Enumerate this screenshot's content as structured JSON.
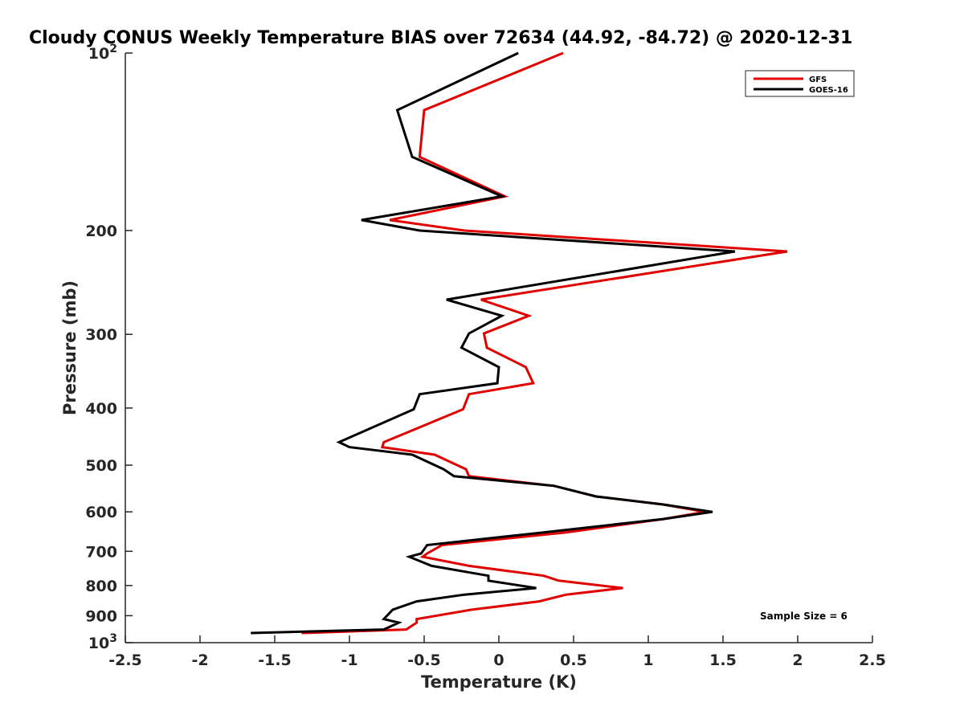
{
  "chart_data": {
    "type": "line",
    "title": "Cloudy CONUS Weekly Temperature BIAS over 72634 (44.92, -84.72) @ 2020-12-31",
    "xlabel": "Temperature (K)",
    "ylabel": "Pressure (mb)",
    "xlim": [
      -2.5,
      2.5
    ],
    "ylim": [
      100,
      1000
    ],
    "y_scale": "log",
    "y_reversed": true,
    "grid": false,
    "legend_position": "top-right",
    "x_ticks": [
      "-2.5",
      "-2",
      "-1.5",
      "-1",
      "-0.5",
      "0",
      "0.5",
      "1",
      "1.5",
      "2",
      "2.5"
    ],
    "y_ticks": [
      {
        "value": 100,
        "base": "10",
        "exp": "2"
      },
      {
        "value": 200,
        "label": "200"
      },
      {
        "value": 300,
        "label": "300"
      },
      {
        "value": 400,
        "label": "400"
      },
      {
        "value": 500,
        "label": "500"
      },
      {
        "value": 600,
        "label": "600"
      },
      {
        "value": 700,
        "label": "700"
      },
      {
        "value": 800,
        "label": "800"
      },
      {
        "value": 900,
        "label": "900"
      },
      {
        "value": 1000,
        "base": "10",
        "exp": "3"
      }
    ],
    "annotation": "Sample Size = 6",
    "series": [
      {
        "name": "GFS",
        "color": "#e00000",
        "points": [
          [
            0.43,
            100
          ],
          [
            -0.5,
            125
          ],
          [
            -0.53,
            150
          ],
          [
            0.04,
            175
          ],
          [
            -0.73,
            192
          ],
          [
            -0.23,
            200
          ],
          [
            1.93,
            217
          ],
          [
            -0.12,
            262
          ],
          [
            0.2,
            279
          ],
          [
            -0.1,
            299
          ],
          [
            -0.08,
            316
          ],
          [
            0.18,
            341
          ],
          [
            0.23,
            363
          ],
          [
            -0.2,
            379
          ],
          [
            -0.24,
            402
          ],
          [
            -0.77,
            457
          ],
          [
            -0.78,
            466
          ],
          [
            -0.43,
            480
          ],
          [
            -0.22,
            508
          ],
          [
            -0.2,
            522
          ],
          [
            0.37,
            542
          ],
          [
            0.65,
            565
          ],
          [
            1.1,
            583
          ],
          [
            1.38,
            600
          ],
          [
            1.1,
            617
          ],
          [
            0.45,
            650
          ],
          [
            -0.38,
            683
          ],
          [
            -0.48,
            706
          ],
          [
            -0.51,
            715
          ],
          [
            -0.2,
            741
          ],
          [
            0.3,
            770
          ],
          [
            0.4,
            785
          ],
          [
            0.83,
            808
          ],
          [
            0.45,
            829
          ],
          [
            0.27,
            851
          ],
          [
            -0.18,
            879
          ],
          [
            -0.55,
            912
          ],
          [
            -0.55,
            925
          ],
          [
            -0.62,
            950
          ],
          [
            -1.32,
            963
          ]
        ]
      },
      {
        "name": "GOES-16",
        "color": "#000000",
        "points": [
          [
            0.13,
            100
          ],
          [
            -0.68,
            125
          ],
          [
            -0.58,
            150
          ],
          [
            0.02,
            175
          ],
          [
            -0.92,
            192
          ],
          [
            -0.53,
            200
          ],
          [
            1.58,
            217
          ],
          [
            -0.35,
            262
          ],
          [
            0.02,
            279
          ],
          [
            -0.2,
            299
          ],
          [
            -0.25,
            316
          ],
          [
            -0.0,
            341
          ],
          [
            -0.01,
            363
          ],
          [
            -0.53,
            379
          ],
          [
            -0.57,
            402
          ],
          [
            -1.07,
            457
          ],
          [
            -1.0,
            466
          ],
          [
            -0.58,
            480
          ],
          [
            -0.37,
            508
          ],
          [
            -0.3,
            522
          ],
          [
            0.37,
            542
          ],
          [
            0.65,
            565
          ],
          [
            1.1,
            583
          ],
          [
            1.43,
            600
          ],
          [
            1.1,
            617
          ],
          [
            0.3,
            650
          ],
          [
            -0.48,
            683
          ],
          [
            -0.52,
            706
          ],
          [
            -0.6,
            715
          ],
          [
            -0.45,
            741
          ],
          [
            -0.07,
            770
          ],
          [
            -0.07,
            785
          ],
          [
            0.25,
            808
          ],
          [
            -0.23,
            829
          ],
          [
            -0.55,
            851
          ],
          [
            -0.71,
            879
          ],
          [
            -0.77,
            912
          ],
          [
            -0.67,
            925
          ],
          [
            -0.77,
            950
          ],
          [
            -1.66,
            963
          ]
        ]
      }
    ]
  }
}
